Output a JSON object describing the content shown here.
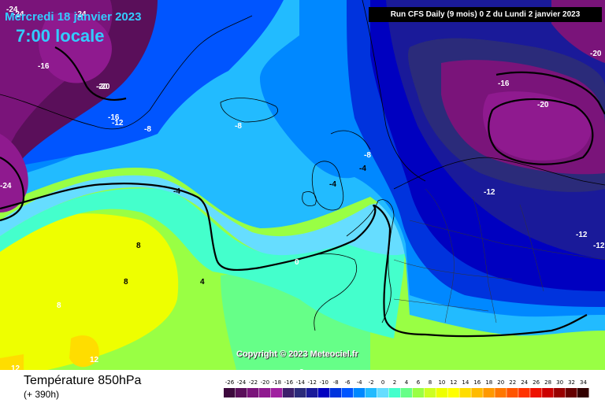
{
  "header": {
    "date": "Mercredi 18 janvier 2023",
    "local_time": "7:00 locale",
    "run_info": "Run CFS Daily (9 mois) 0 Z du Lundi 2 janvier 2023"
  },
  "map": {
    "copyright": "Copyright © 2023 Meteociel.fr",
    "contour_labels": [
      "-24",
      "-24",
      "-24",
      "-16",
      "-20",
      "-16",
      "-12",
      "-8",
      "-8",
      "-8",
      "-4",
      "-4",
      "-4",
      "-24",
      "-20",
      "-16",
      "-20",
      "-12",
      "-12",
      "-12",
      "0",
      "4",
      "8",
      "8",
      "8",
      "12",
      "12",
      "8",
      "8",
      "-20"
    ]
  },
  "footer": {
    "variable": "Température 850hPa",
    "lead_time": "(+ 390h)"
  },
  "legend": {
    "values": [
      "-26",
      "-24",
      "-22",
      "-20",
      "-18",
      "-16",
      "-14",
      "-12",
      "-10",
      "-8",
      "-6",
      "-4",
      "-2",
      "0",
      "2",
      "4",
      "6",
      "8",
      "10",
      "12",
      "14",
      "16",
      "18",
      "20",
      "22",
      "24",
      "26",
      "28",
      "30",
      "32",
      "34"
    ],
    "colors": [
      "#3d0a3d",
      "#5a0f5a",
      "#7a147a",
      "#8f1a8f",
      "#a020a0",
      "#3d1f6b",
      "#2b2b7a",
      "#1a1a99",
      "#0000c0",
      "#0033dd",
      "#0055ff",
      "#0088ff",
      "#22bbff",
      "#66ddff",
      "#44ffcc",
      "#66ff88",
      "#99ff44",
      "#ccff22",
      "#eeff00",
      "#ffff00",
      "#ffdd00",
      "#ffbb00",
      "#ff9900",
      "#ff7700",
      "#ff5500",
      "#ff3300",
      "#ee1100",
      "#cc0000",
      "#990000",
      "#660000",
      "#330000"
    ]
  }
}
